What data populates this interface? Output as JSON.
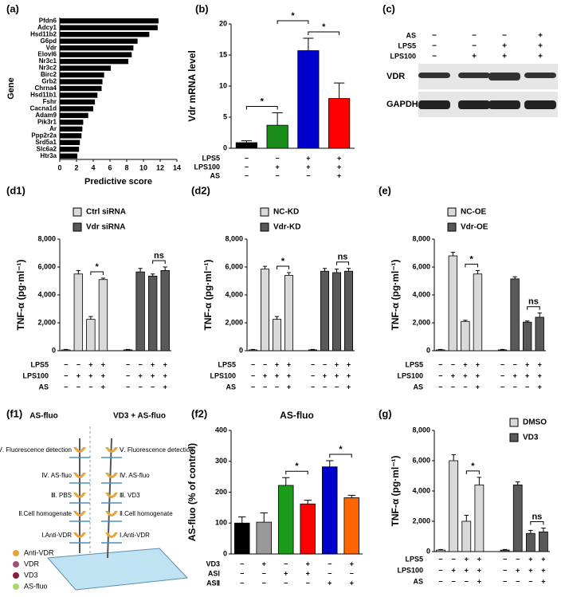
{
  "chart_data": [
    {
      "type": "hbar",
      "label": "(a)",
      "categories": [
        "Pfdn6",
        "Adcy1",
        "Hsd11b2",
        "G6pd",
        "Vdr",
        "Elovl6",
        "Nr3c1",
        "Nr3c2",
        "Birc2",
        "Grb2",
        "Chrna4",
        "Hsd11b1",
        "Fshr",
        "Cacna1d",
        "Adam9",
        "Pik3r1",
        "Ar",
        "Ppp2r2a",
        "Srd5a1",
        "Slc6a2",
        "Htr3a"
      ],
      "values": [
        11.8,
        11.7,
        10.7,
        9.3,
        8.8,
        8.6,
        8.2,
        6.1,
        5.3,
        5.1,
        5.0,
        4.5,
        4.2,
        4.0,
        3.4,
        2.8,
        2.7,
        2.6,
        2.4,
        2.3,
        2.1
      ],
      "color": "#000000",
      "xlim": [
        0,
        14
      ],
      "xticks": [
        0,
        2,
        4,
        6,
        8,
        10,
        12,
        14
      ],
      "xlabel": "Predictive score",
      "ylabel": "Gene"
    },
    {
      "type": "bar",
      "label": "(b)",
      "ylabel": "Vdr mRNA level",
      "ylim": [
        0,
        20
      ],
      "yticks": [
        0,
        5,
        10,
        15,
        20
      ],
      "values": [
        0.9,
        3.7,
        15.7,
        8.0
      ],
      "errors": [
        0.3,
        2.0,
        2.0,
        2.5
      ],
      "colors": [
        "#000000",
        "#1a8c1a",
        "#0000cc",
        "#ff0000"
      ],
      "conditions": [
        {
          "name": "LPS5",
          "signs": [
            "−",
            "−",
            "+",
            "+"
          ]
        },
        {
          "name": "LPS100",
          "signs": [
            "−",
            "+",
            "+",
            "+"
          ]
        },
        {
          "name": "AS",
          "signs": [
            "−",
            "−",
            "−",
            "+"
          ]
        }
      ],
      "annotations": [
        "*",
        "*",
        "*"
      ]
    },
    {
      "type": "grouped",
      "label": "(d1)",
      "ylabel": "TNF-α (pg·ml⁻¹)",
      "ylim": [
        0,
        8000
      ],
      "yticks": [
        0,
        {
          "value": 2000,
          "label": "2,000"
        },
        {
          "value": 4000,
          "label": "4,000"
        },
        {
          "value": 6000,
          "label": "6,000"
        },
        {
          "value": 8000,
          "label": "8,000"
        }
      ],
      "series": [
        {
          "name": "Ctrl siRNA",
          "color": "#d9d9d9",
          "values": [
            60,
            5500,
            2250,
            5100
          ],
          "errors": [
            30,
            250,
            200,
            100
          ]
        },
        {
          "name": "Vdr siRNA",
          "color": "#595959",
          "values": [
            60,
            5650,
            5350,
            5750
          ],
          "errors": [
            30,
            250,
            150,
            250
          ]
        }
      ],
      "conditions": [
        {
          "name": "LPS5",
          "signs": [
            "−",
            "−",
            "+",
            "+",
            "−",
            "−",
            "+",
            "+"
          ]
        },
        {
          "name": "LPS100",
          "signs": [
            "−",
            "+",
            "+",
            "+",
            "−",
            "+",
            "+",
            "+"
          ]
        },
        {
          "name": "AS",
          "signs": [
            "−",
            "−",
            "−",
            "+",
            "−",
            "−",
            "−",
            "+"
          ]
        }
      ],
      "annotations": [
        "*",
        "ns"
      ]
    },
    {
      "type": "grouped",
      "label": "(d2)",
      "ylabel": "TNF-α (pg·ml⁻¹)",
      "ylim": [
        0,
        8000
      ],
      "yticks": [
        0,
        {
          "value": 2000,
          "label": "2,000"
        },
        {
          "value": 4000,
          "label": "4,000"
        },
        {
          "value": 6000,
          "label": "6,000"
        },
        {
          "value": 8000,
          "label": "8,000"
        }
      ],
      "series": [
        {
          "name": "NC-KD",
          "color": "#d9d9d9",
          "values": [
            60,
            5850,
            2250,
            5400
          ],
          "errors": [
            30,
            200,
            200,
            200
          ]
        },
        {
          "name": "Vdr-KD",
          "color": "#595959",
          "values": [
            60,
            5700,
            5600,
            5700
          ],
          "errors": [
            30,
            200,
            250,
            200
          ]
        }
      ],
      "conditions": [
        {
          "name": "LPS5",
          "signs": [
            "−",
            "−",
            "+",
            "+",
            "−",
            "−",
            "+",
            "+"
          ]
        },
        {
          "name": "LPS100",
          "signs": [
            "−",
            "+",
            "+",
            "+",
            "−",
            "+",
            "+",
            "+"
          ]
        },
        {
          "name": "AS",
          "signs": [
            "−",
            "−",
            "−",
            "+",
            "−",
            "−",
            "−",
            "+"
          ]
        }
      ],
      "annotations": [
        "*",
        "ns"
      ]
    },
    {
      "type": "grouped",
      "label": "(e)",
      "ylabel": "TNF-α (pg·ml⁻¹)",
      "ylim": [
        0,
        8000
      ],
      "yticks": [
        0,
        {
          "value": 2000,
          "label": "2,000"
        },
        {
          "value": 4000,
          "label": "4,000"
        },
        {
          "value": 6000,
          "label": "6,000"
        },
        {
          "value": 8000,
          "label": "8,000"
        }
      ],
      "series": [
        {
          "name": "NC-OE",
          "color": "#d9d9d9",
          "values": [
            60,
            6800,
            2100,
            5500
          ],
          "errors": [
            30,
            250,
            80,
            250
          ]
        },
        {
          "name": "Vdr-OE",
          "color": "#595959",
          "values": [
            60,
            5150,
            2050,
            2400
          ],
          "errors": [
            30,
            150,
            80,
            300
          ]
        }
      ],
      "conditions": [
        {
          "name": "LPS5",
          "signs": [
            "−",
            "−",
            "+",
            "+",
            "−",
            "−",
            "+",
            "+"
          ]
        },
        {
          "name": "LPS100",
          "signs": [
            "−",
            "+",
            "+",
            "+",
            "−",
            "+",
            "+",
            "+"
          ]
        },
        {
          "name": "AS",
          "signs": [
            "−",
            "−",
            "−",
            "+",
            "−",
            "−",
            "−",
            "+"
          ]
        }
      ],
      "annotations": [
        "*",
        "ns"
      ]
    },
    {
      "type": "bar",
      "label": "(f2)",
      "title": "AS-fluo",
      "ylabel": "AS-fluo (% of control)",
      "ylim": [
        0,
        400
      ],
      "yticks": [
        0,
        100,
        200,
        300,
        400
      ],
      "values": [
        100,
        103,
        222,
        162,
        282,
        182
      ],
      "errors": [
        20,
        30,
        25,
        12,
        20,
        8
      ],
      "colors": [
        "#000000",
        "#999999",
        "#1a9c1a",
        "#ff0000",
        "#0000cc",
        "#ff6600"
      ],
      "conditions": [
        {
          "name": "VD3",
          "signs": [
            "−",
            "+",
            "−",
            "+",
            "−",
            "+"
          ]
        },
        {
          "name": "ASⅠ",
          "signs": [
            "−",
            "−",
            "+",
            "+",
            "−",
            "−"
          ]
        },
        {
          "name": "ASⅡ",
          "signs": [
            "−",
            "−",
            "−",
            "−",
            "+",
            "+"
          ]
        }
      ],
      "annotations": [
        "*",
        "*"
      ]
    },
    {
      "type": "grouped",
      "label": "(g)",
      "ylabel": "TNF-α (pg·ml⁻¹)",
      "ylim": [
        0,
        8000
      ],
      "yticks": [
        0,
        {
          "value": 2000,
          "label": "2,000"
        },
        {
          "value": 4000,
          "label": "4,000"
        },
        {
          "value": 6000,
          "label": "6,000"
        },
        {
          "value": 8000,
          "label": "8,000"
        }
      ],
      "series": [
        {
          "name": "DMSO",
          "color": "#d9d9d9",
          "values": [
            100,
            6000,
            2000,
            4400
          ],
          "errors": [
            40,
            400,
            400,
            500
          ]
        },
        {
          "name": "VD3",
          "color": "#595959",
          "values": [
            100,
            4400,
            1200,
            1300
          ],
          "errors": [
            40,
            200,
            200,
            250
          ]
        }
      ],
      "conditions": [
        {
          "name": "LPS5",
          "signs": [
            "−",
            "−",
            "+",
            "+",
            "−",
            "−",
            "+",
            "+"
          ]
        },
        {
          "name": "LPS100",
          "signs": [
            "−",
            "+",
            "+",
            "+",
            "−",
            "+",
            "+",
            "+"
          ]
        },
        {
          "name": "AS",
          "signs": [
            "−",
            "−",
            "−",
            "+",
            "−",
            "−",
            "−",
            "+"
          ]
        }
      ],
      "annotations": [
        "*",
        "ns"
      ]
    }
  ],
  "blot": {
    "label": "(c)",
    "conditions": [
      {
        "name": "AS",
        "signs": [
          "−",
          "−",
          "−",
          "+"
        ]
      },
      {
        "name": "LPS5",
        "signs": [
          "−",
          "−",
          "+",
          "+"
        ]
      },
      {
        "name": "LPS100",
        "signs": [
          "−",
          "+",
          "+",
          "+"
        ]
      }
    ],
    "bands": [
      "VDR",
      "GAPDH"
    ]
  },
  "diagram": {
    "label": "(f1)",
    "columns": [
      {
        "title": "AS-fluo",
        "steps": [
          "Ⅰ.Anti-VDR",
          "Ⅱ.Cell homogenate",
          "Ⅲ. PBS",
          "Ⅳ. AS-fluo",
          "Ⅴ. Fluorescence detection"
        ]
      },
      {
        "title": "VD3 + AS-fluo",
        "steps": [
          "Ⅰ.Anti-VDR",
          "Ⅱ.Cell homogenate",
          "Ⅲ. VD3",
          "Ⅳ. AS-fluo",
          "Ⅴ. Fluorescence detection"
        ]
      }
    ],
    "legend": [
      "Anti-VDR",
      "VDR",
      "VD3",
      "AS-fluo"
    ]
  }
}
